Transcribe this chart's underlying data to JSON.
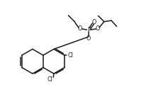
{
  "bg_color": "#ffffff",
  "line_color": "#1a1a1a",
  "lw": 1.1,
  "figsize": [
    2.07,
    1.5
  ],
  "dpi": 100,
  "xlim": [
    0,
    10.5
  ],
  "ylim": [
    0,
    7.5
  ]
}
